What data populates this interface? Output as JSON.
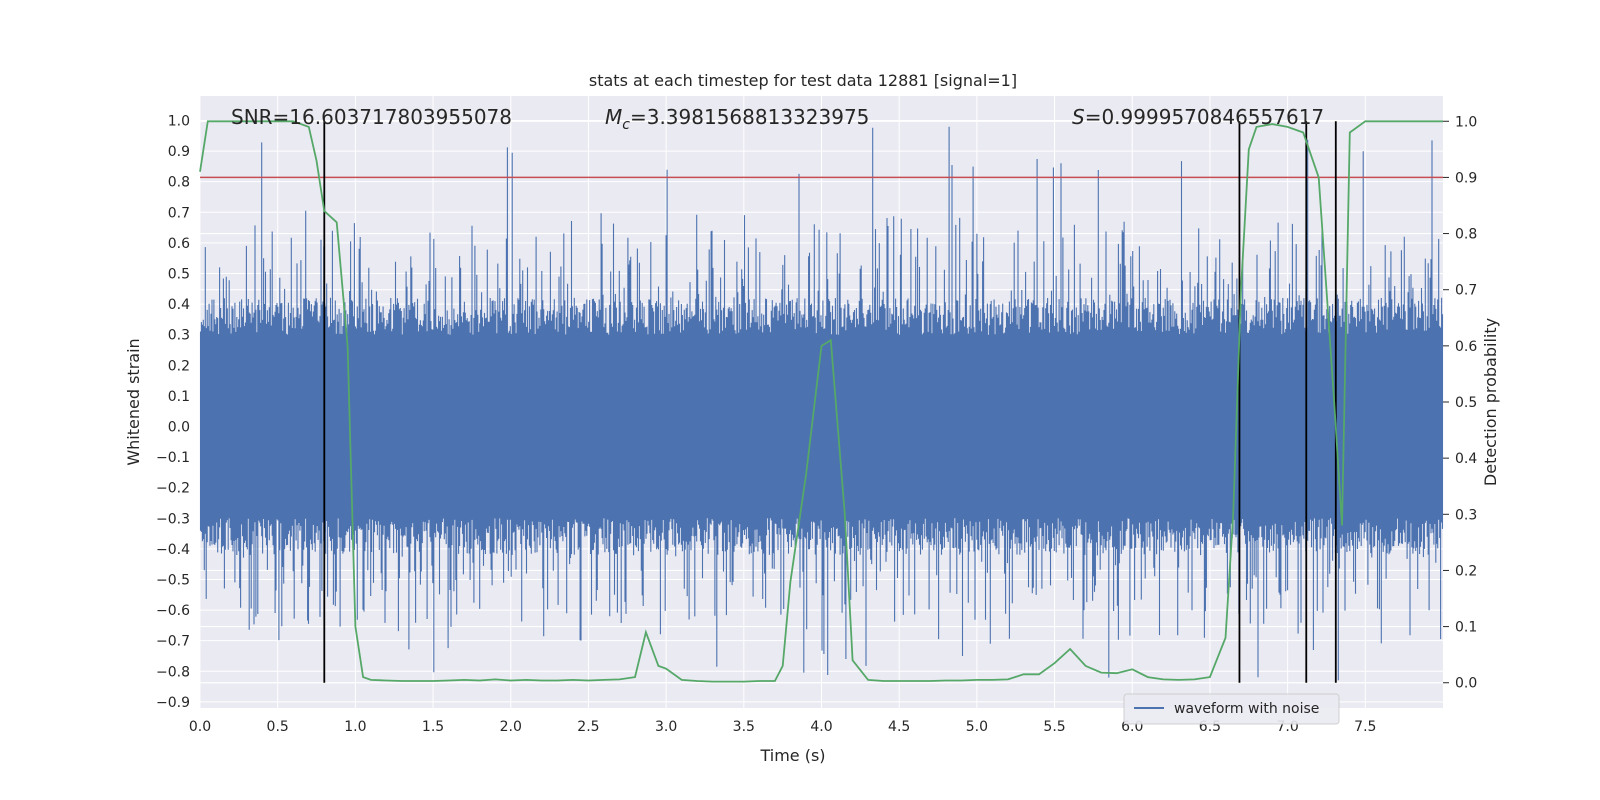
{
  "chart_data": {
    "type": "line",
    "title": "stats at each timestep for test data 12881 [signal=1]",
    "xlabel": "Time (s)",
    "ylabel": "Whitened strain",
    "y2label": "Detection probability",
    "xlim": [
      0.0,
      8.0
    ],
    "ylim": [
      -0.92,
      1.08
    ],
    "y2lim": [
      -0.045,
      1.045
    ],
    "xticks": [
      "0.0",
      "0.5",
      "1.0",
      "1.5",
      "2.0",
      "2.5",
      "3.0",
      "3.5",
      "4.0",
      "4.5",
      "5.0",
      "5.5",
      "6.0",
      "6.5",
      "7.0",
      "7.5"
    ],
    "yticks": [
      "1.0",
      "0.9",
      "0.8",
      "0.7",
      "0.6",
      "0.5",
      "0.4",
      "0.3",
      "0.2",
      "0.1",
      "0.0",
      "−0.1",
      "−0.2",
      "−0.3",
      "−0.4",
      "−0.5",
      "−0.6",
      "−0.7",
      "−0.8",
      "−0.9"
    ],
    "y2ticks": [
      "1.0",
      "0.9",
      "0.8",
      "0.7",
      "0.6",
      "0.5",
      "0.4",
      "0.3",
      "0.2",
      "0.1",
      "0.0"
    ],
    "grid": true,
    "legend": "bottom-right",
    "annotations": {
      "snr": "SNR=16.603717803955078",
      "mc_symbol": "M",
      "mc_sub": "c",
      "mc_value": "=3.3981568813323975",
      "s_symbol": "S",
      "s_value": "=0.9999570846557617"
    },
    "threshold_probability": 0.9,
    "vlines_x": [
      0.8,
      6.69,
      7.12,
      7.31
    ],
    "series": [
      {
        "name": "waveform with noise",
        "axis": "left",
        "color": "#4c72b0",
        "description_level": "noise band with spikes between -0.83 and 0.99"
      },
      {
        "axis": "right",
        "color": "#55a868",
        "x": [
          0.0,
          0.05,
          0.1,
          0.2,
          0.3,
          0.4,
          0.5,
          0.6,
          0.7,
          0.75,
          0.8,
          0.88,
          0.95,
          1.0,
          1.05,
          1.1,
          1.2,
          1.3,
          1.4,
          1.5,
          1.6,
          1.7,
          1.8,
          1.9,
          2.0,
          2.1,
          2.2,
          2.3,
          2.4,
          2.5,
          2.6,
          2.7,
          2.8,
          2.87,
          2.95,
          3.0,
          3.1,
          3.2,
          3.3,
          3.4,
          3.5,
          3.6,
          3.7,
          3.75,
          3.8,
          3.9,
          4.0,
          4.06,
          4.15,
          4.2,
          4.3,
          4.4,
          4.5,
          4.6,
          4.7,
          4.8,
          4.9,
          5.0,
          5.1,
          5.2,
          5.3,
          5.4,
          5.5,
          5.6,
          5.7,
          5.8,
          5.9,
          6.0,
          6.1,
          6.2,
          6.3,
          6.4,
          6.5,
          6.6,
          6.65,
          6.7,
          6.75,
          6.8,
          6.9,
          7.0,
          7.1,
          7.2,
          7.3,
          7.35,
          7.4,
          7.5,
          7.6,
          7.7,
          7.8,
          7.9,
          8.0
        ],
        "y": [
          0.91,
          1.0,
          1.0,
          1.0,
          1.0,
          1.0,
          1.0,
          1.0,
          0.99,
          0.93,
          0.84,
          0.82,
          0.6,
          0.1,
          0.01,
          0.005,
          0.004,
          0.003,
          0.003,
          0.003,
          0.004,
          0.005,
          0.004,
          0.006,
          0.004,
          0.005,
          0.004,
          0.004,
          0.005,
          0.004,
          0.005,
          0.006,
          0.01,
          0.09,
          0.03,
          0.025,
          0.005,
          0.003,
          0.002,
          0.002,
          0.002,
          0.003,
          0.003,
          0.03,
          0.18,
          0.37,
          0.6,
          0.61,
          0.3,
          0.04,
          0.005,
          0.003,
          0.003,
          0.003,
          0.003,
          0.004,
          0.004,
          0.005,
          0.005,
          0.006,
          0.015,
          0.015,
          0.035,
          0.06,
          0.03,
          0.018,
          0.017,
          0.024,
          0.01,
          0.006,
          0.005,
          0.006,
          0.01,
          0.08,
          0.3,
          0.7,
          0.95,
          0.99,
          0.995,
          0.99,
          0.98,
          0.9,
          0.5,
          0.28,
          0.98,
          1.0,
          1.0,
          1.0,
          1.0,
          1.0,
          1.0
        ]
      }
    ]
  },
  "legend": {
    "label": "waveform with noise"
  },
  "colors": {
    "background": "#eaeaf2",
    "grid": "#ffffff",
    "waveform": "#4c72b0",
    "probability": "#55a868",
    "threshold": "#c44e52",
    "vline": "#000000"
  }
}
